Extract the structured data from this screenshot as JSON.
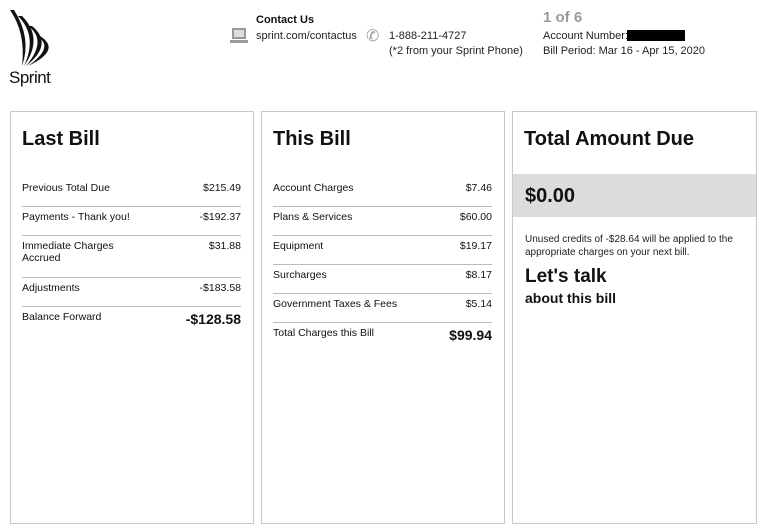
{
  "brand": {
    "name": "Sprint"
  },
  "header": {
    "contact_title": "Contact Us",
    "website": "sprint.com/contactus",
    "phone": "1-888-211-4727",
    "phone_note": "(*2 from your Sprint Phone)",
    "page": "1 of 6",
    "account_label": "Account Number:",
    "bill_period": "Bill Period: Mar 16 - Apr 15, 2020"
  },
  "last_bill": {
    "title": "Last Bill",
    "rows": [
      {
        "label": "Previous Total Due",
        "value": "$215.49"
      },
      {
        "label": "Payments - Thank you!",
        "value": "-$192.37"
      },
      {
        "label": "Immediate Charges Accrued",
        "value": "$31.88"
      },
      {
        "label": "Adjustments",
        "value": "-$183.58"
      },
      {
        "label": "Balance Forward",
        "value": "-$128.58"
      }
    ]
  },
  "this_bill": {
    "title": "This Bill",
    "rows": [
      {
        "label": "Account Charges",
        "value": "$7.46"
      },
      {
        "label": "Plans & Services",
        "value": "$60.00"
      },
      {
        "label": "Equipment",
        "value": "$19.17"
      },
      {
        "label": "Surcharges",
        "value": "$8.17"
      },
      {
        "label": "Government Taxes & Fees",
        "value": "$5.14"
      },
      {
        "label": "Total Charges this Bill",
        "value": "$99.94"
      }
    ]
  },
  "total_due": {
    "title": "Total Amount Due",
    "amount": "$0.00",
    "note": "Unused credits of -$28.64 will be applied to the appropriate charges on your next bill.",
    "talk_title": "Let's talk",
    "talk_sub": "about this bill"
  }
}
